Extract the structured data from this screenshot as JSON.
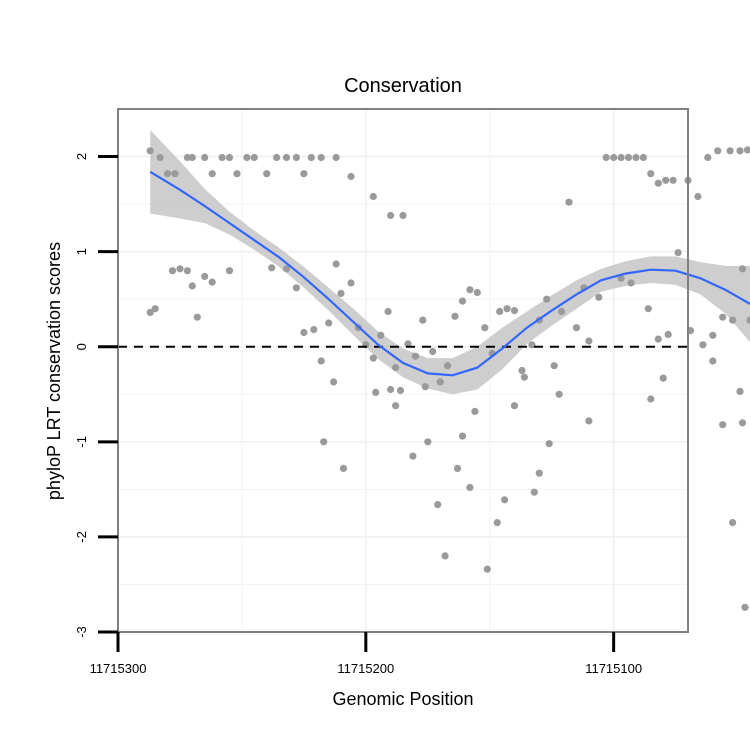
{
  "colors": {
    "background": "#ffffff",
    "panel_border": "#808080",
    "grid": "#f2f2f2",
    "points": "#9a9a9a",
    "smooth_line": "#3366ff",
    "ci_band": "#bdbdbd",
    "zero_line": "#000000"
  },
  "chart_data": {
    "type": "scatter",
    "title": "Conservation",
    "xlabel": "Genomic Position",
    "ylabel": "phyloP LRT conservation scores",
    "x_reversed": true,
    "xlim": [
      11715300,
      11715070
    ],
    "ylim": [
      -3,
      2.5
    ],
    "x_ticks": [
      11715300,
      11715200,
      11715100
    ],
    "x_tick_labels": [
      "11715300",
      "11715200",
      "11715100"
    ],
    "y_ticks": [
      -3,
      -2,
      -1,
      0,
      1,
      2
    ],
    "y_tick_labels": [
      "-3",
      "-2",
      "-1",
      "0",
      "1",
      "2"
    ],
    "grid": true,
    "reference_line": {
      "y": 0,
      "style": "dashed"
    },
    "smooth": {
      "method": "loess",
      "x": [
        11715287,
        11715275,
        11715265,
        11715255,
        11715245,
        11715235,
        11715225,
        11715215,
        11715205,
        11715195,
        11715185,
        11715175,
        11715165,
        11715155,
        11715145,
        11715135,
        11715125,
        11715115,
        11715105,
        11715095,
        11715085,
        11715075,
        11715065,
        11715055,
        11715045
      ],
      "y": [
        1.84,
        1.65,
        1.48,
        1.3,
        1.12,
        0.94,
        0.73,
        0.5,
        0.26,
        0.02,
        -0.17,
        -0.28,
        -0.3,
        -0.22,
        -0.02,
        0.2,
        0.38,
        0.55,
        0.7,
        0.77,
        0.81,
        0.8,
        0.72,
        0.6,
        0.45
      ],
      "lower": [
        1.4,
        1.35,
        1.3,
        1.18,
        1.02,
        0.84,
        0.62,
        0.38,
        0.12,
        -0.13,
        -0.32,
        -0.44,
        -0.5,
        -0.45,
        -0.24,
        0.03,
        0.22,
        0.4,
        0.58,
        0.64,
        0.67,
        0.65,
        0.55,
        0.35,
        0.05
      ],
      "upper": [
        2.28,
        1.95,
        1.66,
        1.42,
        1.22,
        1.04,
        0.84,
        0.62,
        0.4,
        0.16,
        -0.02,
        -0.12,
        -0.12,
        0.0,
        0.2,
        0.37,
        0.54,
        0.7,
        0.82,
        0.9,
        0.95,
        0.95,
        0.89,
        0.85,
        0.85
      ]
    },
    "points": [
      {
        "x": 11715287,
        "y": 2.06
      },
      {
        "x": 11715283,
        "y": 1.99
      },
      {
        "x": 11715280,
        "y": 1.82
      },
      {
        "x": 11715277,
        "y": 1.82
      },
      {
        "x": 11715272,
        "y": 1.99
      },
      {
        "x": 11715270,
        "y": 1.99
      },
      {
        "x": 11715265,
        "y": 1.99
      },
      {
        "x": 11715262,
        "y": 1.82
      },
      {
        "x": 11715258,
        "y": 1.99
      },
      {
        "x": 11715255,
        "y": 1.99
      },
      {
        "x": 11715252,
        "y": 1.82
      },
      {
        "x": 11715248,
        "y": 1.99
      },
      {
        "x": 11715245,
        "y": 1.99
      },
      {
        "x": 11715240,
        "y": 1.82
      },
      {
        "x": 11715236,
        "y": 1.99
      },
      {
        "x": 11715232,
        "y": 1.99
      },
      {
        "x": 11715228,
        "y": 1.99
      },
      {
        "x": 11715225,
        "y": 1.82
      },
      {
        "x": 11715222,
        "y": 1.99
      },
      {
        "x": 11715218,
        "y": 1.99
      },
      {
        "x": 11715212,
        "y": 1.99
      },
      {
        "x": 11715206,
        "y": 1.79
      },
      {
        "x": 11715197,
        "y": 1.58
      },
      {
        "x": 11715190,
        "y": 1.38
      },
      {
        "x": 11715185,
        "y": 1.38
      },
      {
        "x": 11715287,
        "y": 0.36
      },
      {
        "x": 11715285,
        "y": 0.4
      },
      {
        "x": 11715278,
        "y": 0.8
      },
      {
        "x": 11715275,
        "y": 0.82
      },
      {
        "x": 11715272,
        "y": 0.8
      },
      {
        "x": 11715270,
        "y": 0.64
      },
      {
        "x": 11715268,
        "y": 0.31
      },
      {
        "x": 11715265,
        "y": 0.74
      },
      {
        "x": 11715262,
        "y": 0.68
      },
      {
        "x": 11715255,
        "y": 0.8
      },
      {
        "x": 11715238,
        "y": 0.83
      },
      {
        "x": 11715232,
        "y": 0.82
      },
      {
        "x": 11715228,
        "y": 0.62
      },
      {
        "x": 11715225,
        "y": 0.15
      },
      {
        "x": 11715221,
        "y": 0.18
      },
      {
        "x": 11715218,
        "y": -0.15
      },
      {
        "x": 11715215,
        "y": 0.25
      },
      {
        "x": 11715212,
        "y": 0.87
      },
      {
        "x": 11715210,
        "y": 0.56
      },
      {
        "x": 11715206,
        "y": 0.67
      },
      {
        "x": 11715203,
        "y": 0.2
      },
      {
        "x": 11715200,
        "y": 0.02
      },
      {
        "x": 11715197,
        "y": -0.12
      },
      {
        "x": 11715194,
        "y": 0.12
      },
      {
        "x": 11715191,
        "y": 0.37
      },
      {
        "x": 11715188,
        "y": -0.22
      },
      {
        "x": 11715186,
        "y": -0.46
      },
      {
        "x": 11715183,
        "y": 0.03
      },
      {
        "x": 11715180,
        "y": -0.1
      },
      {
        "x": 11715177,
        "y": 0.28
      },
      {
        "x": 11715173,
        "y": -0.05
      },
      {
        "x": 11715170,
        "y": -0.37
      },
      {
        "x": 11715167,
        "y": -0.2
      },
      {
        "x": 11715164,
        "y": 0.32
      },
      {
        "x": 11715161,
        "y": 0.48
      },
      {
        "x": 11715158,
        "y": 0.6
      },
      {
        "x": 11715155,
        "y": 0.57
      },
      {
        "x": 11715152,
        "y": 0.2
      },
      {
        "x": 11715149,
        "y": -0.07
      },
      {
        "x": 11715146,
        "y": 0.37
      },
      {
        "x": 11715143,
        "y": 0.4
      },
      {
        "x": 11715140,
        "y": 0.38
      },
      {
        "x": 11715137,
        "y": -0.25
      },
      {
        "x": 11715133,
        "y": 0.02
      },
      {
        "x": 11715130,
        "y": 0.28
      },
      {
        "x": 11715127,
        "y": 0.5
      },
      {
        "x": 11715124,
        "y": -0.2
      },
      {
        "x": 11715121,
        "y": 0.37
      },
      {
        "x": 11715118,
        "y": 1.52
      },
      {
        "x": 11715115,
        "y": 0.2
      },
      {
        "x": 11715112,
        "y": 0.62
      },
      {
        "x": 11715110,
        "y": 0.06
      },
      {
        "x": 11715106,
        "y": 0.52
      },
      {
        "x": 11715103,
        "y": 1.99
      },
      {
        "x": 11715100,
        "y": 1.99
      },
      {
        "x": 11715097,
        "y": 1.99
      },
      {
        "x": 11715094,
        "y": 1.99
      },
      {
        "x": 11715091,
        "y": 1.99
      },
      {
        "x": 11715088,
        "y": 1.99
      },
      {
        "x": 11715085,
        "y": 1.82
      },
      {
        "x": 11715082,
        "y": 1.72
      },
      {
        "x": 11715079,
        "y": 1.75
      },
      {
        "x": 11715076,
        "y": 1.75
      },
      {
        "x": 11715070,
        "y": 1.75
      },
      {
        "x": 11715066,
        "y": 1.58
      },
      {
        "x": 11715062,
        "y": 1.99
      },
      {
        "x": 11715058,
        "y": 2.06
      },
      {
        "x": 11715053,
        "y": 2.06
      },
      {
        "x": 11715049,
        "y": 2.06
      },
      {
        "x": 11715046,
        "y": 2.07
      },
      {
        "x": 11715097,
        "y": 0.72
      },
      {
        "x": 11715093,
        "y": 0.67
      },
      {
        "x": 11715086,
        "y": 0.4
      },
      {
        "x": 11715082,
        "y": 0.08
      },
      {
        "x": 11715078,
        "y": 0.13
      },
      {
        "x": 11715074,
        "y": 0.99
      },
      {
        "x": 11715069,
        "y": 0.17
      },
      {
        "x": 11715064,
        "y": 0.02
      },
      {
        "x": 11715060,
        "y": 0.12
      },
      {
        "x": 11715056,
        "y": 0.31
      },
      {
        "x": 11715052,
        "y": 0.28
      },
      {
        "x": 11715048,
        "y": 0.82
      },
      {
        "x": 11715045,
        "y": 0.28
      },
      {
        "x": 11715190,
        "y": -0.45
      },
      {
        "x": 11715188,
        "y": -0.62
      },
      {
        "x": 11715181,
        "y": -1.15
      },
      {
        "x": 11715175,
        "y": -1.0
      },
      {
        "x": 11715171,
        "y": -1.66
      },
      {
        "x": 11715168,
        "y": -2.2
      },
      {
        "x": 11715163,
        "y": -1.28
      },
      {
        "x": 11715161,
        "y": -0.94
      },
      {
        "x": 11715158,
        "y": -1.48
      },
      {
        "x": 11715156,
        "y": -0.68
      },
      {
        "x": 11715151,
        "y": -2.34
      },
      {
        "x": 11715147,
        "y": -1.85
      },
      {
        "x": 11715144,
        "y": -1.61
      },
      {
        "x": 11715140,
        "y": -0.62
      },
      {
        "x": 11715136,
        "y": -0.32
      },
      {
        "x": 11715132,
        "y": -1.53
      },
      {
        "x": 11715130,
        "y": -1.33
      },
      {
        "x": 11715126,
        "y": -1.02
      },
      {
        "x": 11715122,
        "y": -0.5
      },
      {
        "x": 11715110,
        "y": -0.78
      },
      {
        "x": 11715085,
        "y": -0.55
      },
      {
        "x": 11715080,
        "y": -0.33
      },
      {
        "x": 11715060,
        "y": -0.15
      },
      {
        "x": 11715056,
        "y": -0.82
      },
      {
        "x": 11715052,
        "y": -1.85
      },
      {
        "x": 11715049,
        "y": -0.47
      },
      {
        "x": 11715048,
        "y": -0.8
      },
      {
        "x": 11715047,
        "y": -2.74
      },
      {
        "x": 11715217,
        "y": -1.0
      },
      {
        "x": 11715213,
        "y": -0.37
      },
      {
        "x": 11715209,
        "y": -1.28
      },
      {
        "x": 11715196,
        "y": -0.48
      },
      {
        "x": 11715176,
        "y": -0.42
      }
    ]
  }
}
